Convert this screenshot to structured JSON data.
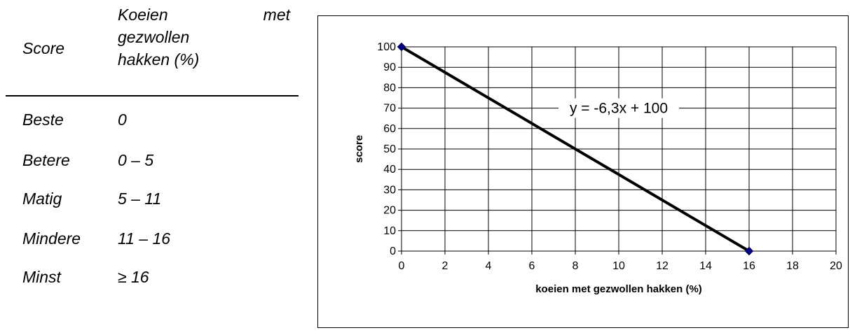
{
  "table": {
    "header_score": "Score",
    "header_percent_line1": [
      "Koeien",
      "met"
    ],
    "header_percent_line2": "gezwollen",
    "header_percent_line3": "hakken (%)",
    "rows": [
      {
        "label": "Beste",
        "range": "0"
      },
      {
        "label": "Betere",
        "range": "0 – 5"
      },
      {
        "label": "Matig",
        "range": "5 – 11"
      },
      {
        "label": "Mindere",
        "range": "11 – 16"
      },
      {
        "label": "Minst",
        "range": "≥ 16"
      }
    ]
  },
  "chart_data": {
    "type": "line",
    "title": "",
    "xlabel": "koeien met gezwollen hakken (%)",
    "ylabel": "score",
    "xlim": [
      0,
      20
    ],
    "ylim": [
      0,
      100
    ],
    "x_ticks": [
      0,
      2,
      4,
      6,
      8,
      10,
      12,
      14,
      16,
      18,
      20
    ],
    "y_ticks": [
      0,
      10,
      20,
      30,
      40,
      50,
      60,
      70,
      80,
      90,
      100
    ],
    "grid": true,
    "legend": "none",
    "series": [
      {
        "x": [
          0,
          16
        ],
        "y": [
          100,
          0
        ],
        "line_color": "#000000",
        "marker_color": "#000080",
        "marker": "diamond"
      }
    ],
    "annotations": [
      {
        "text": "y = -6,3x + 100",
        "x": 10,
        "y": 70
      }
    ]
  }
}
